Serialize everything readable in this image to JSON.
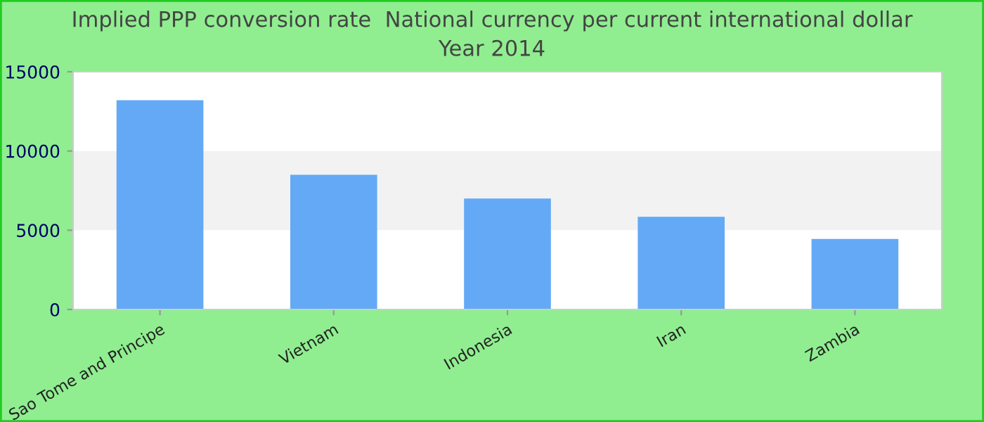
{
  "chart_data": {
    "type": "bar",
    "title": "Implied PPP conversion rate  National currency per current international dollar\nYear 2014",
    "categories": [
      "Sao Tome and Principe",
      "Vietnam",
      "Indonesia",
      "Iran",
      "Zambia"
    ],
    "series": [
      {
        "color": "#63a9f5",
        "values": [
          13200,
          8500,
          7000,
          5850,
          4450
        ]
      }
    ],
    "ylim": [
      0,
      15000
    ],
    "yticks": [
      0,
      5000,
      10000,
      15000
    ],
    "bands": [
      {
        "axis": "y",
        "from": 5000,
        "to": 10000,
        "color": "#f2f2f2"
      }
    ]
  }
}
